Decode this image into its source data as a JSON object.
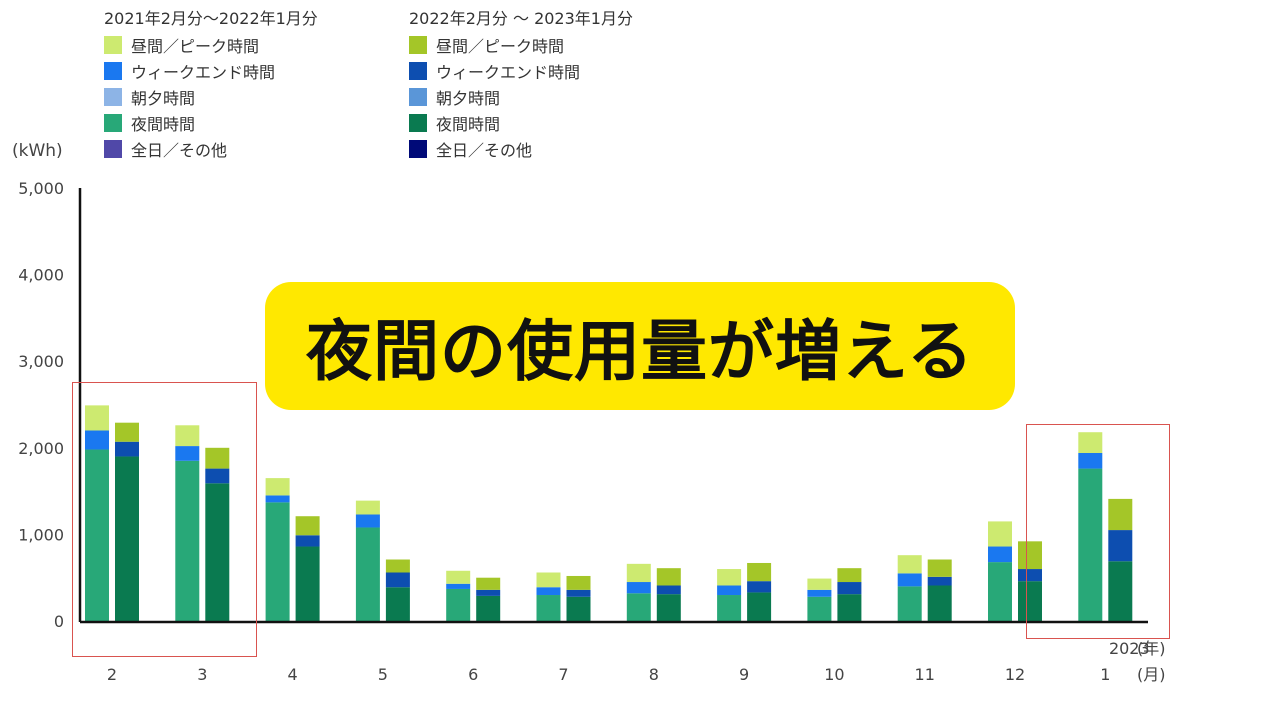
{
  "legend": {
    "left": {
      "header": "2021年2月分～2022年1月分",
      "items": [
        {
          "label": "昼間／ピーク時間",
          "color": "#cdea70"
        },
        {
          "label": "ウィークエンド時間",
          "color": "#1a78f0"
        },
        {
          "label": "朝夕時間",
          "color": "#8db4e6"
        },
        {
          "label": "夜間時間",
          "color": "#28a878"
        },
        {
          "label": "全日／その他",
          "color": "#5048a8"
        }
      ]
    },
    "right": {
      "header": "2022年2月分 ～ 2023年1月分",
      "items": [
        {
          "label": "昼間／ピーク時間",
          "color": "#a4c628"
        },
        {
          "label": "ウィークエンド時間",
          "color": "#0d4eb0"
        },
        {
          "label": "朝夕時間",
          "color": "#5a96d8"
        },
        {
          "label": "夜間時間",
          "color": "#0a7a50"
        },
        {
          "label": "全日／その他",
          "color": "#000a78"
        }
      ]
    }
  },
  "banner": {
    "text": "夜間の使用量が増える"
  },
  "chart_data": {
    "type": "bar",
    "stacked": true,
    "y_unit_label": "(kWh)",
    "ylim": [
      0,
      5000
    ],
    "yticks": [
      "0",
      "1,000",
      "2,000",
      "3,000",
      "4,000",
      "5,000"
    ],
    "categories": [
      "2",
      "3",
      "4",
      "5",
      "6",
      "7",
      "8",
      "9",
      "10",
      "11",
      "12",
      "1"
    ],
    "year_label": "2023",
    "year_unit": "(年)",
    "month_unit": "(月)",
    "groups": [
      {
        "name": "2021年2月分～2022年1月分",
        "series": [
          {
            "name": "夜間時間",
            "color": "#28a878",
            "values": [
              1980,
              1850,
              1370,
              1080,
              370,
              300,
              320,
              300,
              280,
              400,
              680,
              1760
            ]
          },
          {
            "name": "ウィークエンド時間",
            "color": "#1a78f0",
            "values": [
              220,
              170,
              80,
              150,
              60,
              90,
              130,
              110,
              80,
              150,
              180,
              180
            ]
          },
          {
            "name": "昼間／ピーク時間",
            "color": "#cdea70",
            "values": [
              290,
              240,
              200,
              160,
              150,
              170,
              210,
              190,
              130,
              210,
              290,
              240
            ]
          }
        ]
      },
      {
        "name": "2022年2月分 ～ 2023年1月分",
        "series": [
          {
            "name": "夜間時間",
            "color": "#0a7a50",
            "values": [
              1900,
              1590,
              860,
              390,
              290,
              280,
              310,
              330,
              310,
              410,
              460,
              690
            ]
          },
          {
            "name": "ウィークエンド時間",
            "color": "#0d4eb0",
            "values": [
              170,
              170,
              130,
              170,
              70,
              80,
              100,
              130,
              140,
              100,
              140,
              360
            ]
          },
          {
            "name": "昼間／ピーク時間",
            "color": "#a4c628",
            "values": [
              220,
              240,
              220,
              150,
              140,
              160,
              200,
              210,
              160,
              200,
              320,
              360
            ]
          }
        ]
      }
    ],
    "highlights": [
      {
        "from_category": "2",
        "to_category": "3"
      },
      {
        "from_category": "1",
        "to_category": "1"
      }
    ]
  }
}
